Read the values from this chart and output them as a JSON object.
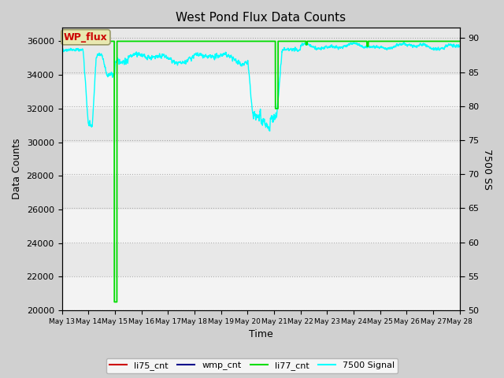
{
  "title": "West Pond Flux Data Counts",
  "xlabel": "Time",
  "ylabel_left": "Data Counts",
  "ylabel_right": "7500 SS",
  "ylim_left": [
    20000,
    36800
  ],
  "ylim_right": [
    50,
    91.5
  ],
  "yticks_left": [
    20000,
    22000,
    24000,
    26000,
    28000,
    30000,
    32000,
    34000,
    36000
  ],
  "yticks_right": [
    50,
    55,
    60,
    65,
    70,
    75,
    80,
    85,
    90
  ],
  "xtick_labels": [
    "May 13",
    "May 14",
    "May 15",
    "May 16",
    "May 17",
    "May 18",
    "May 19",
    "May 20",
    "May 21",
    "May 22",
    "May 23",
    "May 24",
    "May 25",
    "May 26",
    "May 27",
    "May 28"
  ],
  "fig_bg_color": "#d0d0d0",
  "plot_bg_color": "#e8e8e8",
  "wp_flux_box_color": "#e8e8b0",
  "wp_flux_text_color": "#cc0000",
  "cyan_color": "#00ffff",
  "green_color": "#00dd00",
  "seed": 42
}
